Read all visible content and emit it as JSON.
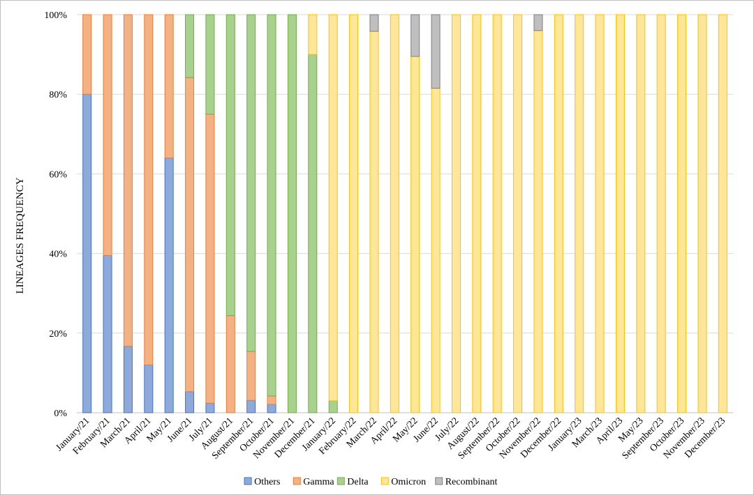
{
  "chart_data": {
    "type": "bar",
    "stacked": true,
    "percent": true,
    "ylabel": "LINEAGES FREQUENCY",
    "xlabel": "",
    "ylim": [
      0,
      100
    ],
    "yticks": [
      "0%",
      "20%",
      "40%",
      "60%",
      "80%",
      "100%"
    ],
    "grid": true,
    "legend_position": "bottom",
    "categories": [
      "January/21",
      "February/21",
      "March/21",
      "April/21",
      "May/21",
      "June/21",
      "July/21",
      "August/21",
      "September/21",
      "October/21",
      "November/21",
      "December/21",
      "January/22",
      "February/22",
      "March/22",
      "April/22",
      "May/22",
      "June/22",
      "July/22",
      "August/22",
      "September/22",
      "October/22",
      "November/22",
      "December/22",
      "January/23",
      "March/23",
      "April/23",
      "May/23",
      "September/23",
      "October/23",
      "November/23",
      "December/23"
    ],
    "series": [
      {
        "name": "Others",
        "color": "#8eaadb",
        "edge": "#4472c4",
        "values": [
          80,
          39.5,
          16.7,
          12,
          64,
          5.3,
          2.4,
          0,
          3.1,
          2.1,
          0,
          0,
          0,
          0,
          0,
          0,
          0,
          0,
          0,
          0,
          0,
          0,
          0,
          0,
          0,
          0,
          0,
          0,
          0,
          0,
          0,
          0
        ]
      },
      {
        "name": "Gamma",
        "color": "#f4b183",
        "edge": "#ed7d31",
        "values": [
          20,
          60.5,
          83.3,
          88,
          36,
          78.9,
          72.6,
          24.4,
          12.3,
          2.1,
          0,
          0,
          0,
          0,
          0,
          0,
          0,
          0,
          0,
          0,
          0,
          0,
          0,
          0,
          0,
          0,
          0,
          0,
          0,
          0,
          0,
          0
        ]
      },
      {
        "name": "Delta",
        "color": "#a9d18e",
        "edge": "#70ad47",
        "values": [
          0,
          0,
          0,
          0,
          0,
          15.8,
          25,
          75.6,
          84.6,
          95.8,
          100,
          90,
          3,
          0,
          0,
          0,
          0,
          0,
          0,
          0,
          0,
          0,
          0,
          0,
          0,
          0,
          0,
          0,
          0,
          0,
          0,
          0
        ]
      },
      {
        "name": "Omicron",
        "color": "#ffe699",
        "edge": "#ffc000",
        "values": [
          0,
          0,
          0,
          0,
          0,
          0,
          0,
          0,
          0,
          0,
          0,
          10,
          97,
          100,
          95.8,
          100,
          89.5,
          81.5,
          100,
          100,
          100,
          100,
          96,
          100,
          100,
          100,
          100,
          100,
          100,
          100,
          100,
          100
        ]
      },
      {
        "name": "Recombinant",
        "color": "#bfbfbf",
        "edge": "#7f7f7f",
        "values": [
          0,
          0,
          0,
          0,
          0,
          0,
          0,
          0,
          0,
          0,
          0,
          0,
          0,
          0,
          4.2,
          0,
          10.5,
          18.5,
          0,
          0,
          0,
          0,
          4,
          0,
          0,
          0,
          0,
          0,
          0,
          0,
          0,
          0
        ]
      }
    ]
  }
}
